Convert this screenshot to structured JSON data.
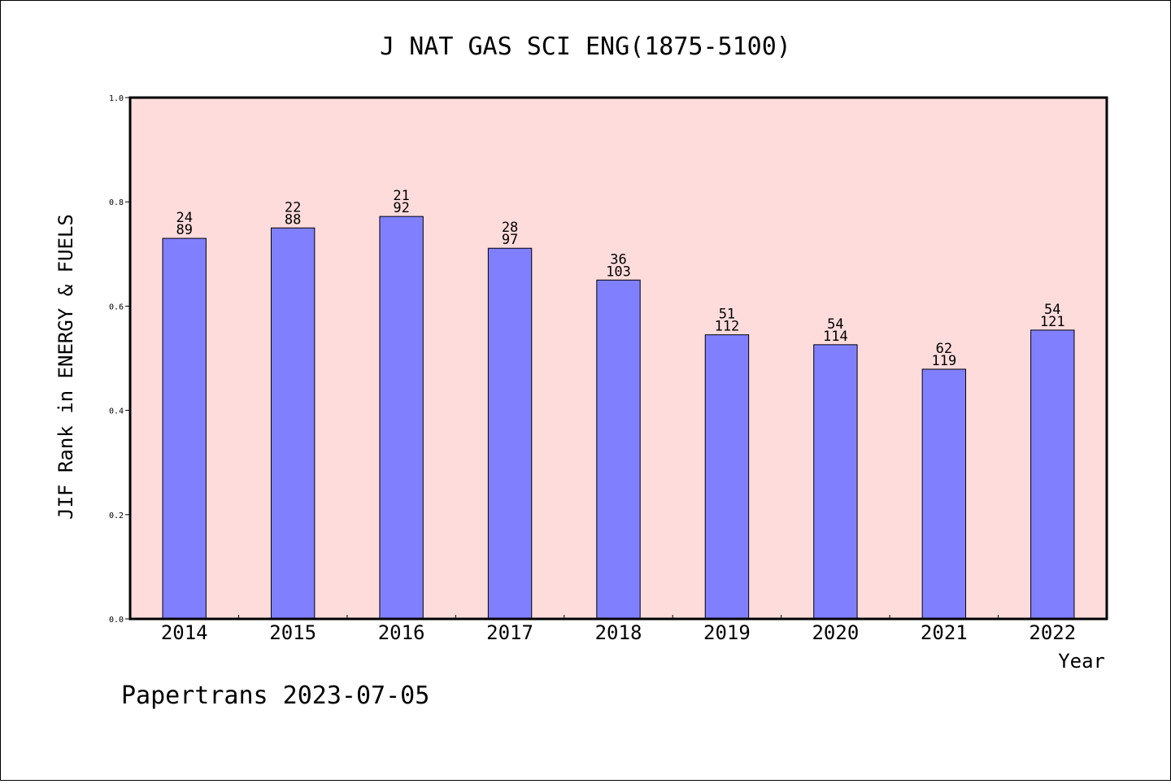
{
  "chart_data": {
    "type": "bar",
    "title": "J NAT GAS SCI ENG(1875-5100)",
    "xlabel": "Year",
    "ylabel": "JIF Rank in ENERGY & FUELS",
    "ylim": [
      0,
      1.0
    ],
    "yticks": [
      "0.0",
      "0.2",
      "0.4",
      "0.6",
      "0.8",
      "1.0"
    ],
    "grid": false,
    "categories": [
      "2014",
      "2015",
      "2016",
      "2017",
      "2018",
      "2019",
      "2020",
      "2021",
      "2022"
    ],
    "values": [
      0.73,
      0.75,
      0.772,
      0.711,
      0.65,
      0.545,
      0.526,
      0.479,
      0.554
    ],
    "rank_labels": [
      "24",
      "22",
      "21",
      "28",
      "36",
      "51",
      "54",
      "62",
      "54"
    ],
    "total_labels": [
      "89",
      "88",
      "92",
      "97",
      "103",
      "112",
      "114",
      "119",
      "121"
    ],
    "colors": {
      "bar": "#8080ff",
      "plot_background": "#ffdcdc"
    }
  },
  "footer": "Papertrans 2023-07-05"
}
